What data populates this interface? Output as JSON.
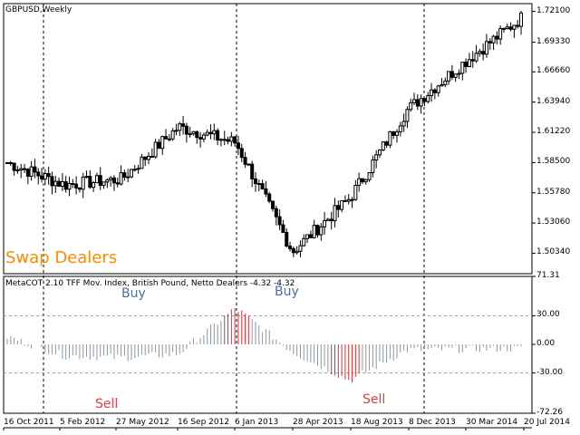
{
  "symbol_label": "GBPUSD,Weekly",
  "overlay_label": "Swap Dealers",
  "indicator_label": "MetaCOT 2.10 TFF Mov. Index, British Pound, Netto Dealers -4.32 -4.32",
  "signals": {
    "buy": "Buy",
    "sell": "Sell"
  },
  "colors": {
    "candle": "#000000",
    "hist_neutral": "#8A96A8",
    "hist_buy": "#E03030",
    "hist_sell": "#E03030",
    "buy_text": "#4A6FA8",
    "sell_text": "#E04040",
    "overlay": "#FF8C00",
    "grid": "#000000",
    "level": "#A0A0A0"
  },
  "price_axis": {
    "ticks": [
      "1.72100",
      "1.69330",
      "1.66660",
      "1.63940",
      "1.61220",
      "1.58500",
      "1.55780",
      "1.53060",
      "1.50340"
    ],
    "min": 1.485,
    "max": 1.728
  },
  "indicator_axis": {
    "ticks": [
      "71.31",
      "30.00",
      "0.00",
      "-30.00",
      "-72.26"
    ],
    "min": -72.26,
    "max": 71.31,
    "levels": [
      30,
      -30
    ]
  },
  "x_axis": {
    "labels": [
      "16 Oct 2011",
      "5 Feb 2012",
      "27 May 2012",
      "16 Sep 2012",
      "6 Jan 2013",
      "28 Apr 2013",
      "18 Aug 2013",
      "8 Dec 2013",
      "30 Mar 2014",
      "20 Jul 2014"
    ]
  },
  "chart_data": [
    {
      "type": "line",
      "title": "GBPUSD,Weekly",
      "x": [
        "16 Oct 2011",
        "5 Feb 2012",
        "27 May 2012",
        "16 Sep 2012",
        "6 Jan 2013",
        "28 Apr 2013",
        "18 Aug 2013",
        "8 Dec 2013",
        "30 Mar 2014",
        "20 Jul 2014"
      ],
      "series": [
        {
          "values": [
            1.585,
            1.565,
            1.57,
            1.617,
            1.603,
            1.505,
            1.553,
            1.632,
            1.675,
            1.715
          ]
        }
      ],
      "ylim": [
        1.485,
        1.728
      ]
    },
    {
      "type": "bar",
      "title": "MetaCOT 2.10 TFF Mov. Index, British Pound, Netto Dealers -4.32 -4.32",
      "categories": [
        "16 Oct 2011",
        "5 Feb 2012",
        "27 May 2012",
        "16 Sep 2012",
        "6 Jan 2013",
        "28 Apr 2013",
        "18 Aug 2013",
        "8 Dec 2013",
        "30 Mar 2014",
        "20 Jul 2014"
      ],
      "values": [
        8,
        -12,
        -14,
        -10,
        38,
        -8,
        -38,
        -6,
        -5,
        -4.32
      ],
      "ylim": [
        -72.26,
        71.31
      ]
    }
  ]
}
